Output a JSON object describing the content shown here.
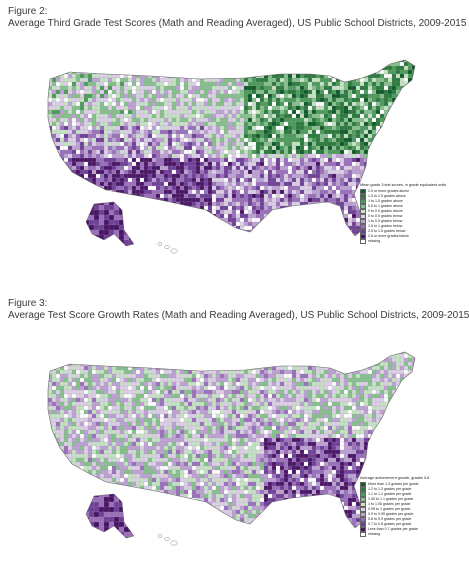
{
  "figures": [
    {
      "label": "Figure 2:",
      "title": "Average Third Grade Test Scores (Math and Reading Averaged), US Public School Districts, 2009-2015",
      "legend": {
        "title": "Mean grade 3 test scores, in grade equivalent units",
        "items": [
          {
            "label": "2.5 or more grades above",
            "color": "#0f5a2a"
          },
          {
            "label": "1.5 to 2.5 grades above",
            "color": "#2a7a3e"
          },
          {
            "label": "1 to 1.5 grades above",
            "color": "#4c9a5c"
          },
          {
            "label": "0.5 to 1 grades above",
            "color": "#86c08e"
          },
          {
            "label": "0 to 0.5 grades above",
            "color": "#c7e3c6"
          },
          {
            "label": "0 to 0.5 grades below",
            "color": "#ddd0e8"
          },
          {
            "label": "1 to 0.5 grades below",
            "color": "#bda2d4"
          },
          {
            "label": "1.5 to 1 grades below",
            "color": "#9a6fbc"
          },
          {
            "label": "2.5 to 1.5 grades below",
            "color": "#6f3f98"
          },
          {
            "label": "2.5 or more grades below",
            "color": "#4a1466"
          },
          {
            "label": "missing",
            "color": "#ffffff"
          }
        ]
      }
    },
    {
      "label": "Figure 3:",
      "title": "Average Test Score Growth Rates (Math and Reading Averaged), US Public School Districts, 2009-2015",
      "legend": {
        "title": "Average achievement growth, grades 3-8",
        "items": [
          {
            "label": "More than 1.3 grades per grade",
            "color": "#0f5a2a"
          },
          {
            "label": "1.2 to 1.3 grades per grade",
            "color": "#2a7a3e"
          },
          {
            "label": "1.1 to 1.2 grades per grade",
            "color": "#4c9a5c"
          },
          {
            "label": "1.05 to 1.1 grades per grade",
            "color": "#86c08e"
          },
          {
            "label": "1 to 1.05 grades per grade",
            "color": "#c7e3c6"
          },
          {
            "label": "0.95 to 1 grades per grade",
            "color": "#ddd0e8"
          },
          {
            "label": "0.9 to 0.95 grades per grade",
            "color": "#bda2d4"
          },
          {
            "label": "0.8 to 0.9 grades per grade",
            "color": "#9a6fbc"
          },
          {
            "label": "0.7 to 0.8 grades per grade",
            "color": "#6f3f98"
          },
          {
            "label": "Less than 0.7 grades per grade",
            "color": "#4a1466"
          },
          {
            "label": "missing",
            "color": "#ffffff"
          }
        ]
      }
    }
  ]
}
